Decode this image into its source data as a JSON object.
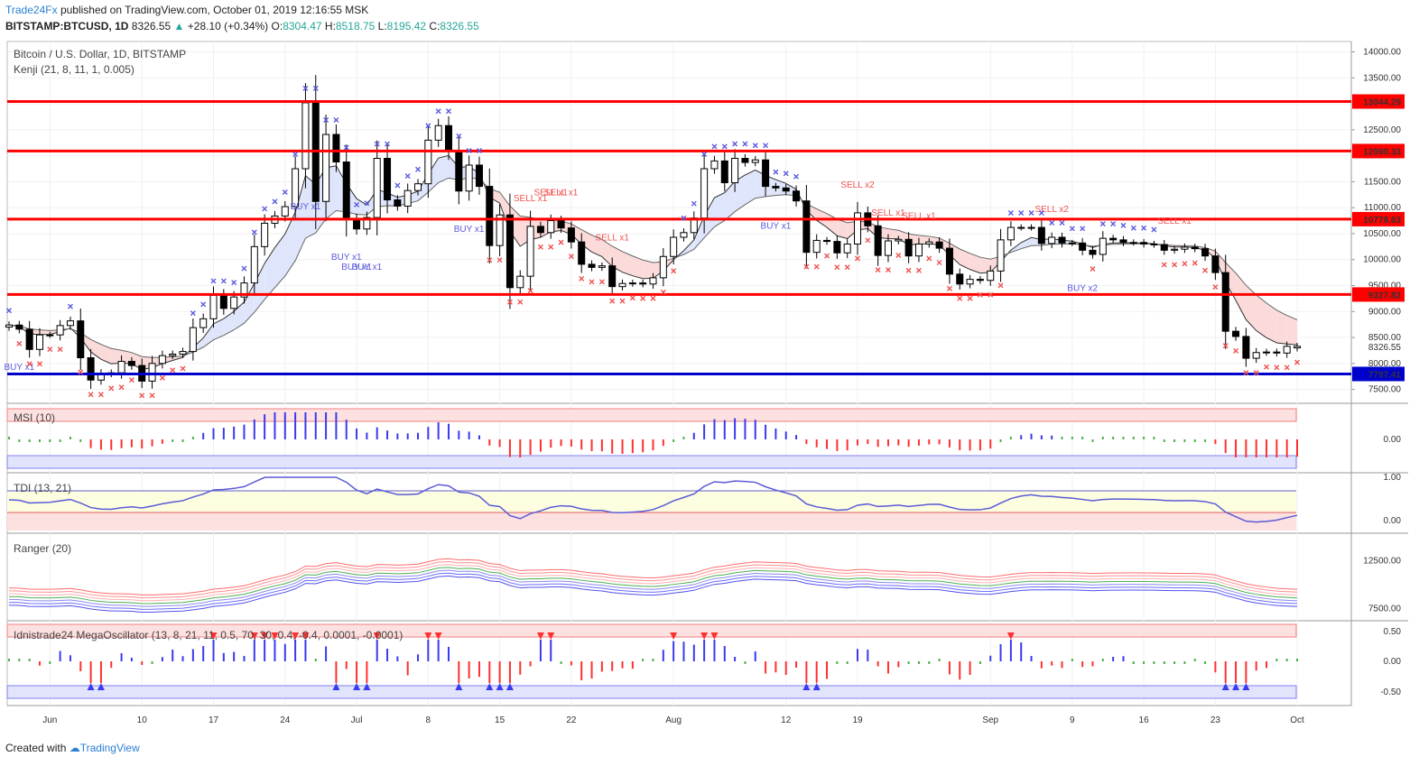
{
  "header": {
    "brand": "Trade24Fx",
    "published": "published on TradingView.com, October 01, 2019 12:16:55 MSK",
    "symbol": "BITSTAMP:BTCUSD, 1D",
    "last": "8326.55",
    "change": "+28.10 (+0.34%)",
    "open_label": "O:",
    "open": "8304.47",
    "high_label": "H:",
    "high": "8518.75",
    "low_label": "L:",
    "low": "8195.42",
    "close_label": "C:",
    "close": "8326.55"
  },
  "footer": {
    "created": "Created with",
    "brand": "TradingView"
  },
  "colors": {
    "up": "#ffffff",
    "down": "#000000",
    "level": "#ff0000",
    "support": "#0000cc",
    "buy": "#5a5adf",
    "sell": "#ef5350",
    "histBlue": "#3a3af0",
    "histRed": "#ff3030",
    "histGreen": "#4caf50"
  },
  "chart_data": [
    {
      "type": "candlestick",
      "title": "Bitcoin / U.S. Dollar, 1D, BITSTAMP",
      "indicator": "Kenji (21, 8, 11, 1, 0.005)",
      "x": [
        "2019-05-28",
        "2019-05-29",
        "2019-05-30",
        "2019-05-31",
        "2019-06-01",
        "2019-06-02",
        "2019-06-03",
        "2019-06-04",
        "2019-06-05",
        "2019-06-06",
        "2019-06-07",
        "2019-06-08",
        "2019-06-09",
        "2019-06-10",
        "2019-06-11",
        "2019-06-12",
        "2019-06-13",
        "2019-06-14",
        "2019-06-15",
        "2019-06-16",
        "2019-06-17",
        "2019-06-18",
        "2019-06-19",
        "2019-06-20",
        "2019-06-21",
        "2019-06-22",
        "2019-06-23",
        "2019-06-24",
        "2019-06-25",
        "2019-06-26",
        "2019-06-27",
        "2019-06-28",
        "2019-06-29",
        "2019-06-30",
        "2019-07-01",
        "2019-07-02",
        "2019-07-03",
        "2019-07-04",
        "2019-07-05",
        "2019-07-06",
        "2019-07-07",
        "2019-07-08",
        "2019-07-09",
        "2019-07-10",
        "2019-07-11",
        "2019-07-12",
        "2019-07-13",
        "2019-07-14",
        "2019-07-15",
        "2019-07-16",
        "2019-07-17",
        "2019-07-18",
        "2019-07-19",
        "2019-07-20",
        "2019-07-21",
        "2019-07-22",
        "2019-07-23",
        "2019-07-24",
        "2019-07-25",
        "2019-07-26",
        "2019-07-27",
        "2019-07-28",
        "2019-07-29",
        "2019-07-30",
        "2019-07-31",
        "2019-08-01",
        "2019-08-02",
        "2019-08-03",
        "2019-08-04",
        "2019-08-05",
        "2019-08-06",
        "2019-08-07",
        "2019-08-08",
        "2019-08-09",
        "2019-08-10",
        "2019-08-11",
        "2019-08-12",
        "2019-08-13",
        "2019-08-14",
        "2019-08-15",
        "2019-08-16",
        "2019-08-17",
        "2019-08-18",
        "2019-08-19",
        "2019-08-20",
        "2019-08-21",
        "2019-08-22",
        "2019-08-23",
        "2019-08-24",
        "2019-08-25",
        "2019-08-26",
        "2019-08-27",
        "2019-08-28",
        "2019-08-29",
        "2019-08-30",
        "2019-08-31",
        "2019-09-01",
        "2019-09-02",
        "2019-09-03",
        "2019-09-04",
        "2019-09-05",
        "2019-09-06",
        "2019-09-07",
        "2019-09-08",
        "2019-09-09",
        "2019-09-10",
        "2019-09-11",
        "2019-09-12",
        "2019-09-13",
        "2019-09-14",
        "2019-09-15",
        "2019-09-16",
        "2019-09-17",
        "2019-09-18",
        "2019-09-19",
        "2019-09-20",
        "2019-09-21",
        "2019-09-22",
        "2019-09-23",
        "2019-09-24",
        "2019-09-25",
        "2019-09-26",
        "2019-09-27",
        "2019-09-28",
        "2019-09-29",
        "2019-09-30",
        "2019-10-01"
      ],
      "close": [
        8740,
        8660,
        8270,
        8550,
        8550,
        8730,
        8820,
        8110,
        7680,
        7800,
        7820,
        8040,
        7960,
        7660,
        8000,
        8150,
        8180,
        8230,
        8690,
        8860,
        9310,
        9060,
        9280,
        9550,
        10250,
        10700,
        10840,
        11020,
        11750,
        13020,
        11120,
        12410,
        11880,
        10780,
        10590,
        10810,
        11950,
        11150,
        11030,
        11330,
        11460,
        12300,
        12580,
        12100,
        11320,
        11820,
        11410,
        10270,
        10860,
        9460,
        9680,
        10640,
        10520,
        10750,
        10610,
        10340,
        9910,
        9850,
        9880,
        9480,
        9540,
        9550,
        9530,
        9650,
        10060,
        10430,
        10520,
        10800,
        11750,
        11900,
        11480,
        11950,
        11870,
        11920,
        11410,
        11380,
        11320,
        11130,
        10140,
        10370,
        10350,
        10130,
        10300,
        10900,
        10650,
        10080,
        10360,
        10390,
        10070,
        10300,
        10340,
        10220,
        9720,
        9530,
        9620,
        9600,
        9780,
        10380,
        10620,
        10620,
        10620,
        10310,
        10430,
        10320,
        10320,
        10180,
        10100,
        10410,
        10380,
        10330,
        10330,
        10300,
        10290,
        10180,
        10200,
        10240,
        10210,
        10070,
        9750,
        8620,
        8520,
        8100,
        8210,
        8220,
        8200,
        8330,
        8330
      ],
      "open": [
        8700,
        8740,
        8660,
        8270,
        8550,
        8550,
        8730,
        8820,
        8110,
        7680,
        7800,
        7820,
        8040,
        7960,
        7660,
        8000,
        8150,
        8180,
        8230,
        8690,
        8860,
        9310,
        9060,
        9280,
        9550,
        10250,
        10700,
        10840,
        11020,
        11750,
        13020,
        11120,
        12410,
        11880,
        10780,
        10590,
        10810,
        11950,
        11150,
        11030,
        11330,
        11460,
        12300,
        12580,
        12100,
        11320,
        11820,
        11410,
        10270,
        10860,
        9460,
        9680,
        10640,
        10520,
        10750,
        10610,
        10340,
        9910,
        9850,
        9880,
        9480,
        9540,
        9550,
        9530,
        9650,
        10060,
        10430,
        10520,
        10800,
        11750,
        11900,
        11480,
        11950,
        11870,
        11920,
        11410,
        11380,
        11320,
        11130,
        10140,
        10370,
        10350,
        10130,
        10300,
        10900,
        10650,
        10080,
        10360,
        10390,
        10070,
        10300,
        10340,
        10220,
        9720,
        9530,
        9620,
        9600,
        9780,
        10380,
        10620,
        10620,
        10620,
        10310,
        10430,
        10320,
        10320,
        10180,
        10100,
        10410,
        10380,
        10330,
        10330,
        10300,
        10290,
        10180,
        10200,
        10240,
        10210,
        10070,
        9750,
        8620,
        8520,
        8100,
        8210,
        8220,
        8200,
        8300
      ],
      "levels": [
        {
          "value": 13044.29,
          "label": "13044.29",
          "color": "red"
        },
        {
          "value": 12090.33,
          "label": "12090.33",
          "color": "red"
        },
        {
          "value": 10778.63,
          "label": "10778.63",
          "color": "red"
        },
        {
          "value": 9327.82,
          "label": "9327.82",
          "color": "red"
        },
        {
          "value": 7797.41,
          "label": "7797.41",
          "color": "blue"
        }
      ],
      "last_price_label": "8326.55",
      "y_ticks": [
        "14000.00",
        "13500.00",
        "13000.00",
        "12500.00",
        "12000.00",
        "11500.00",
        "11000.00",
        "10500.00",
        "10000.00",
        "9500.00",
        "9000.00",
        "8500.00",
        "8000.00",
        "7500.00"
      ],
      "signals": [
        {
          "text": "BUY x1",
          "date": "2019-05-29"
        },
        {
          "text": "BUY x2",
          "date": "2019-06-10"
        },
        {
          "text": "BUY x1",
          "date": "2019-06-26"
        },
        {
          "text": "BUY x1",
          "date": "2019-07-02"
        },
        {
          "text": "BUY x1",
          "date": "2019-06-30"
        },
        {
          "text": "BUY x1",
          "date": "2019-07-01"
        },
        {
          "text": "BUY x1",
          "date": "2019-07-12"
        },
        {
          "text": "SELL x1",
          "date": "2019-07-18"
        },
        {
          "text": "SELL x1",
          "date": "2019-07-20"
        },
        {
          "text": "SELL x1",
          "date": "2019-07-21"
        },
        {
          "text": "SELL x1",
          "date": "2019-07-26"
        },
        {
          "text": "BUY x1",
          "date": "2019-08-11"
        },
        {
          "text": "SELL x2",
          "date": "2019-08-19"
        },
        {
          "text": "SELL x1",
          "date": "2019-08-22"
        },
        {
          "text": "SELL x1",
          "date": "2019-08-25"
        },
        {
          "text": "SELL x2",
          "date": "2019-09-07"
        },
        {
          "text": "BUY x2",
          "date": "2019-09-10"
        },
        {
          "text": "SELL x1",
          "date": "2019-09-19"
        }
      ]
    },
    {
      "type": "bar",
      "title": "MSI (10)",
      "y_ticks": [
        "0.00"
      ]
    },
    {
      "type": "line",
      "title": "TDI (13, 21)",
      "y_ticks": [
        "1.00",
        "0.00"
      ]
    },
    {
      "type": "line",
      "title": "Ranger (20)",
      "y_ticks": [
        "12500.00",
        "7500.00"
      ]
    },
    {
      "type": "bar",
      "title": "Idnistrade24 MegaOscillator (13, 8, 21, 11, 0.5, 70, 30, 0.4, -0.4, 0.0001, -0.0001)",
      "y_ticks": [
        "0.50",
        "0.00",
        "-0.50"
      ]
    }
  ],
  "x_axis_labels": [
    {
      "label": "Jun",
      "date": "2019-06-01"
    },
    {
      "label": "10",
      "date": "2019-06-10"
    },
    {
      "label": "17",
      "date": "2019-06-17"
    },
    {
      "label": "24",
      "date": "2019-06-24"
    },
    {
      "label": "Jul",
      "date": "2019-07-01"
    },
    {
      "label": "8",
      "date": "2019-07-08"
    },
    {
      "label": "15",
      "date": "2019-07-15"
    },
    {
      "label": "22",
      "date": "2019-07-22"
    },
    {
      "label": "Aug",
      "date": "2019-08-01"
    },
    {
      "label": "12",
      "date": "2019-08-12"
    },
    {
      "label": "19",
      "date": "2019-08-19"
    },
    {
      "label": "Sep",
      "date": "2019-09-01"
    },
    {
      "label": "9",
      "date": "2019-09-09"
    },
    {
      "label": "16",
      "date": "2019-09-16"
    },
    {
      "label": "23",
      "date": "2019-09-23"
    },
    {
      "label": "Oct",
      "date": "2019-10-01"
    }
  ]
}
